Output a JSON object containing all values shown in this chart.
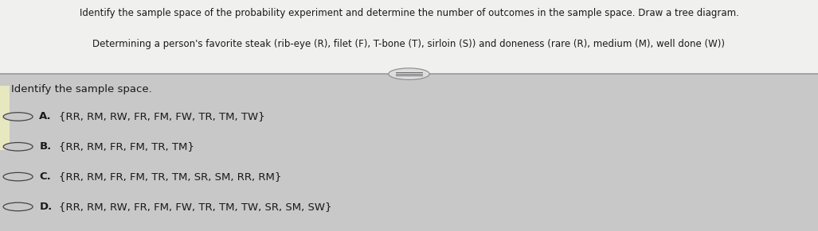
{
  "title_line1": "Identify the sample space of the probability experiment and determine the number of outcomes in the sample space. Draw a tree diagram.",
  "title_line2": "Determining a person's favorite steak (rib-eye (R), filet (F), T-bone (T), sirloin (S)) and doneness (rare (R), medium (M), well done (W))",
  "subheading": "Identify the sample space.",
  "options": [
    {
      "label": "A.",
      "text": "{RR, RM, RW, FR, FM, FW, TR, TM, TW}"
    },
    {
      "label": "B.",
      "text": "{RR, RM, FR, FM, TR, TM}"
    },
    {
      "label": "C.",
      "text": "{RR, RM, FR, FM, TR, TM, SR, SM, RR, RM}"
    },
    {
      "label": "D.",
      "text": "{RR, RM, RW, FR, FM, FW, TR, TM, TW, SR, SM, SW}"
    }
  ],
  "bg_color": "#c8c8c8",
  "top_bg_color": "#f0f0ee",
  "bottom_bg_color": "#c8c8c8",
  "left_bar_color": "#e8e8c0",
  "text_color": "#1a1a1a",
  "circle_color": "#f0f0ee",
  "circle_edge_color": "#444444",
  "divider_color": "#999999",
  "oval_color": "#dddddd",
  "oval_edge_color": "#888888",
  "title_fontsize": 8.5,
  "subheading_fontsize": 9.5,
  "option_fontsize": 9.5,
  "label_fontsize": 9.5
}
